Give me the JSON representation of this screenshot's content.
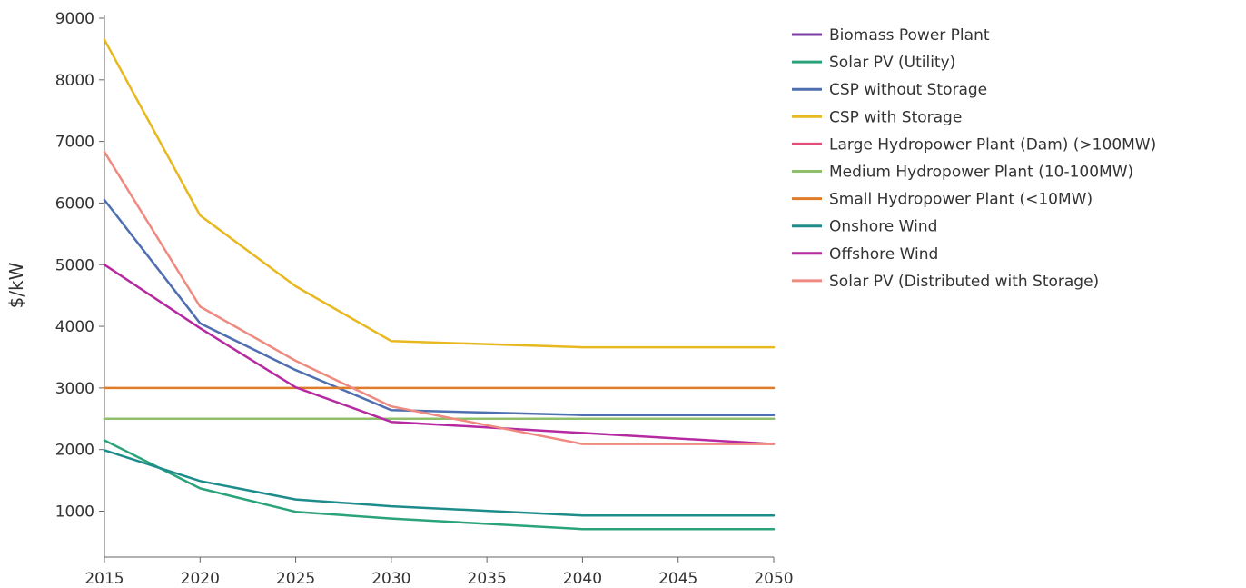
{
  "chart_data": {
    "type": "line",
    "title": "",
    "xlabel": "",
    "ylabel": "$/kW",
    "xlim": [
      2015,
      2050
    ],
    "ylim": [
      300,
      9000
    ],
    "x_ticks": [
      2015,
      2020,
      2025,
      2030,
      2035,
      2040,
      2045,
      2050
    ],
    "y_ticks": [
      1000,
      2000,
      3000,
      4000,
      5000,
      6000,
      7000,
      8000,
      9000
    ],
    "grid": false,
    "legend_position": "right",
    "x": [
      2015,
      2020,
      2025,
      2030,
      2040,
      2050
    ],
    "series": [
      {
        "name": "Biomass Power Plant",
        "color": "#7a3fa0",
        "values": [
          2500,
          2500,
          2500,
          2500,
          2500,
          2500
        ]
      },
      {
        "name": "Solar PV (Utility)",
        "color": "#2ba37a",
        "values": [
          2150,
          1370,
          990,
          880,
          710,
          710
        ]
      },
      {
        "name": "CSP without Storage",
        "color": "#4f6fb0",
        "values": [
          6050,
          4050,
          3290,
          2640,
          2560,
          2560
        ]
      },
      {
        "name": "CSP with Storage",
        "color": "#e8b820",
        "values": [
          8650,
          5800,
          4650,
          3760,
          3660,
          3660
        ]
      },
      {
        "name": "Large Hydropower Plant (Dam) (>100MW)",
        "color": "#e0507a",
        "values": [
          2500,
          2500,
          2500,
          2500,
          2500,
          2500
        ]
      },
      {
        "name": "Medium Hydropower Plant (10-100MW)",
        "color": "#8fbf6a",
        "values": [
          2500,
          2500,
          2500,
          2500,
          2500,
          2500
        ]
      },
      {
        "name": "Small Hydropower Plant (<10MW)",
        "color": "#e07b2a",
        "values": [
          3000,
          3000,
          3000,
          3000,
          3000,
          3000
        ]
      },
      {
        "name": "Onshore Wind",
        "color": "#1f8c8c",
        "values": [
          1990,
          1490,
          1190,
          1080,
          930,
          930
        ]
      },
      {
        "name": "Offshore Wind",
        "color": "#b52aa0",
        "values": [
          5000,
          3970,
          3010,
          2450,
          2270,
          2090
        ]
      },
      {
        "name": "Solar PV (Distributed with Storage)",
        "color": "#ef8a80",
        "values": [
          6830,
          4320,
          3440,
          2700,
          2090,
          2090
        ]
      }
    ]
  }
}
